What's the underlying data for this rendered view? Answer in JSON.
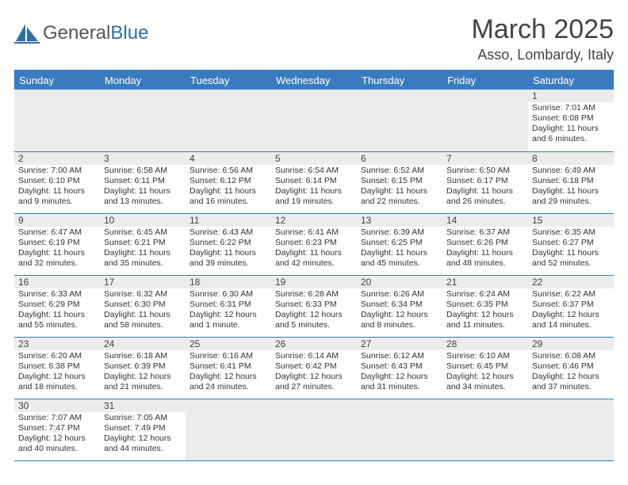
{
  "brand": {
    "name_a": "General",
    "name_b": "Blue"
  },
  "title": "March 2025",
  "location": "Asso, Lombardy, Italy",
  "colors": {
    "header_bg": "#3a7bbf",
    "header_text": "#ffffff",
    "day_num_bg": "#ececec",
    "border": "#3a7bbf",
    "text": "#333333",
    "title": "#444444"
  },
  "day_headers": [
    "Sunday",
    "Monday",
    "Tuesday",
    "Wednesday",
    "Thursday",
    "Friday",
    "Saturday"
  ],
  "weeks": [
    [
      null,
      null,
      null,
      null,
      null,
      null,
      {
        "n": "1",
        "sr": "Sunrise: 7:01 AM",
        "ss": "Sunset: 6:08 PM",
        "dl": "Daylight: 11 hours and 6 minutes."
      }
    ],
    [
      {
        "n": "2",
        "sr": "Sunrise: 7:00 AM",
        "ss": "Sunset: 6:10 PM",
        "dl": "Daylight: 11 hours and 9 minutes."
      },
      {
        "n": "3",
        "sr": "Sunrise: 6:58 AM",
        "ss": "Sunset: 6:11 PM",
        "dl": "Daylight: 11 hours and 13 minutes."
      },
      {
        "n": "4",
        "sr": "Sunrise: 6:56 AM",
        "ss": "Sunset: 6:12 PM",
        "dl": "Daylight: 11 hours and 16 minutes."
      },
      {
        "n": "5",
        "sr": "Sunrise: 6:54 AM",
        "ss": "Sunset: 6:14 PM",
        "dl": "Daylight: 11 hours and 19 minutes."
      },
      {
        "n": "6",
        "sr": "Sunrise: 6:52 AM",
        "ss": "Sunset: 6:15 PM",
        "dl": "Daylight: 11 hours and 22 minutes."
      },
      {
        "n": "7",
        "sr": "Sunrise: 6:50 AM",
        "ss": "Sunset: 6:17 PM",
        "dl": "Daylight: 11 hours and 26 minutes."
      },
      {
        "n": "8",
        "sr": "Sunrise: 6:49 AM",
        "ss": "Sunset: 6:18 PM",
        "dl": "Daylight: 11 hours and 29 minutes."
      }
    ],
    [
      {
        "n": "9",
        "sr": "Sunrise: 6:47 AM",
        "ss": "Sunset: 6:19 PM",
        "dl": "Daylight: 11 hours and 32 minutes."
      },
      {
        "n": "10",
        "sr": "Sunrise: 6:45 AM",
        "ss": "Sunset: 6:21 PM",
        "dl": "Daylight: 11 hours and 35 minutes."
      },
      {
        "n": "11",
        "sr": "Sunrise: 6:43 AM",
        "ss": "Sunset: 6:22 PM",
        "dl": "Daylight: 11 hours and 39 minutes."
      },
      {
        "n": "12",
        "sr": "Sunrise: 6:41 AM",
        "ss": "Sunset: 6:23 PM",
        "dl": "Daylight: 11 hours and 42 minutes."
      },
      {
        "n": "13",
        "sr": "Sunrise: 6:39 AM",
        "ss": "Sunset: 6:25 PM",
        "dl": "Daylight: 11 hours and 45 minutes."
      },
      {
        "n": "14",
        "sr": "Sunrise: 6:37 AM",
        "ss": "Sunset: 6:26 PM",
        "dl": "Daylight: 11 hours and 48 minutes."
      },
      {
        "n": "15",
        "sr": "Sunrise: 6:35 AM",
        "ss": "Sunset: 6:27 PM",
        "dl": "Daylight: 11 hours and 52 minutes."
      }
    ],
    [
      {
        "n": "16",
        "sr": "Sunrise: 6:33 AM",
        "ss": "Sunset: 6:29 PM",
        "dl": "Daylight: 11 hours and 55 minutes."
      },
      {
        "n": "17",
        "sr": "Sunrise: 6:32 AM",
        "ss": "Sunset: 6:30 PM",
        "dl": "Daylight: 11 hours and 58 minutes."
      },
      {
        "n": "18",
        "sr": "Sunrise: 6:30 AM",
        "ss": "Sunset: 6:31 PM",
        "dl": "Daylight: 12 hours and 1 minute."
      },
      {
        "n": "19",
        "sr": "Sunrise: 6:28 AM",
        "ss": "Sunset: 6:33 PM",
        "dl": "Daylight: 12 hours and 5 minutes."
      },
      {
        "n": "20",
        "sr": "Sunrise: 6:26 AM",
        "ss": "Sunset: 6:34 PM",
        "dl": "Daylight: 12 hours and 8 minutes."
      },
      {
        "n": "21",
        "sr": "Sunrise: 6:24 AM",
        "ss": "Sunset: 6:35 PM",
        "dl": "Daylight: 12 hours and 11 minutes."
      },
      {
        "n": "22",
        "sr": "Sunrise: 6:22 AM",
        "ss": "Sunset: 6:37 PM",
        "dl": "Daylight: 12 hours and 14 minutes."
      }
    ],
    [
      {
        "n": "23",
        "sr": "Sunrise: 6:20 AM",
        "ss": "Sunset: 6:38 PM",
        "dl": "Daylight: 12 hours and 18 minutes."
      },
      {
        "n": "24",
        "sr": "Sunrise: 6:18 AM",
        "ss": "Sunset: 6:39 PM",
        "dl": "Daylight: 12 hours and 21 minutes."
      },
      {
        "n": "25",
        "sr": "Sunrise: 6:16 AM",
        "ss": "Sunset: 6:41 PM",
        "dl": "Daylight: 12 hours and 24 minutes."
      },
      {
        "n": "26",
        "sr": "Sunrise: 6:14 AM",
        "ss": "Sunset: 6:42 PM",
        "dl": "Daylight: 12 hours and 27 minutes."
      },
      {
        "n": "27",
        "sr": "Sunrise: 6:12 AM",
        "ss": "Sunset: 6:43 PM",
        "dl": "Daylight: 12 hours and 31 minutes."
      },
      {
        "n": "28",
        "sr": "Sunrise: 6:10 AM",
        "ss": "Sunset: 6:45 PM",
        "dl": "Daylight: 12 hours and 34 minutes."
      },
      {
        "n": "29",
        "sr": "Sunrise: 6:08 AM",
        "ss": "Sunset: 6:46 PM",
        "dl": "Daylight: 12 hours and 37 minutes."
      }
    ],
    [
      {
        "n": "30",
        "sr": "Sunrise: 7:07 AM",
        "ss": "Sunset: 7:47 PM",
        "dl": "Daylight: 12 hours and 40 minutes."
      },
      {
        "n": "31",
        "sr": "Sunrise: 7:05 AM",
        "ss": "Sunset: 7:49 PM",
        "dl": "Daylight: 12 hours and 44 minutes."
      },
      null,
      null,
      null,
      null,
      null
    ]
  ]
}
